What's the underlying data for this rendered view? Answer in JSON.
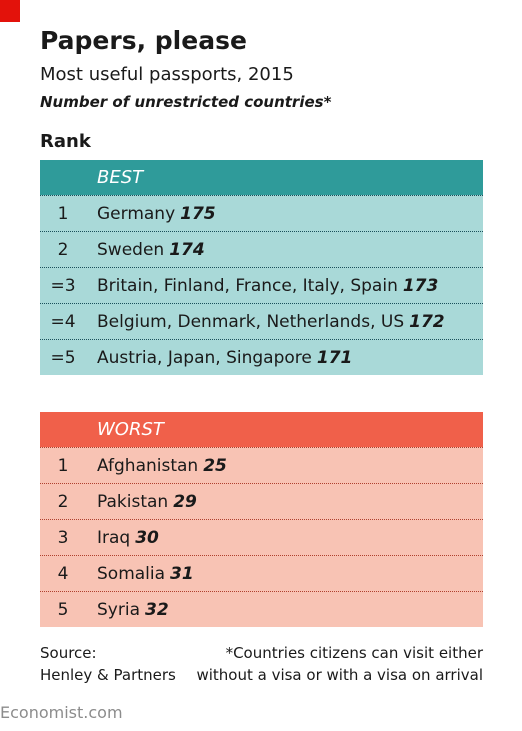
{
  "header": {
    "title": "Papers, please",
    "subtitle": "Most useful passports, 2015",
    "note": "Number of unrestricted countries*",
    "rank_label": "Rank"
  },
  "tables": [
    {
      "heading": "BEST",
      "rows": [
        {
          "rank": "1",
          "countries": "Germany",
          "count": 175
        },
        {
          "rank": "2",
          "countries": "Sweden",
          "count": 174
        },
        {
          "rank": "=3",
          "countries": "Britain, Finland, France, Italy, Spain",
          "count": 173
        },
        {
          "rank": "=4",
          "countries": "Belgium, Denmark, Netherlands, US",
          "count": 172
        },
        {
          "rank": "=5",
          "countries": "Austria, Japan, Singapore",
          "count": 171
        }
      ]
    },
    {
      "heading": "WORST",
      "rows": [
        {
          "rank": "1",
          "countries": "Afghanistan",
          "count": 25
        },
        {
          "rank": "2",
          "countries": "Pakistan",
          "count": 29
        },
        {
          "rank": "3",
          "countries": "Iraq",
          "count": 30
        },
        {
          "rank": "4",
          "countries": "Somalia",
          "count": 31
        },
        {
          "rank": "5",
          "countries": "Syria",
          "count": 32
        }
      ]
    }
  ],
  "footer": {
    "source_label": "Source:",
    "source": "Henley & Partners",
    "footnote": [
      "*Countries citizens can visit either",
      "without a visa or with a visa on arrival"
    ]
  },
  "brand": "Economist.com"
}
